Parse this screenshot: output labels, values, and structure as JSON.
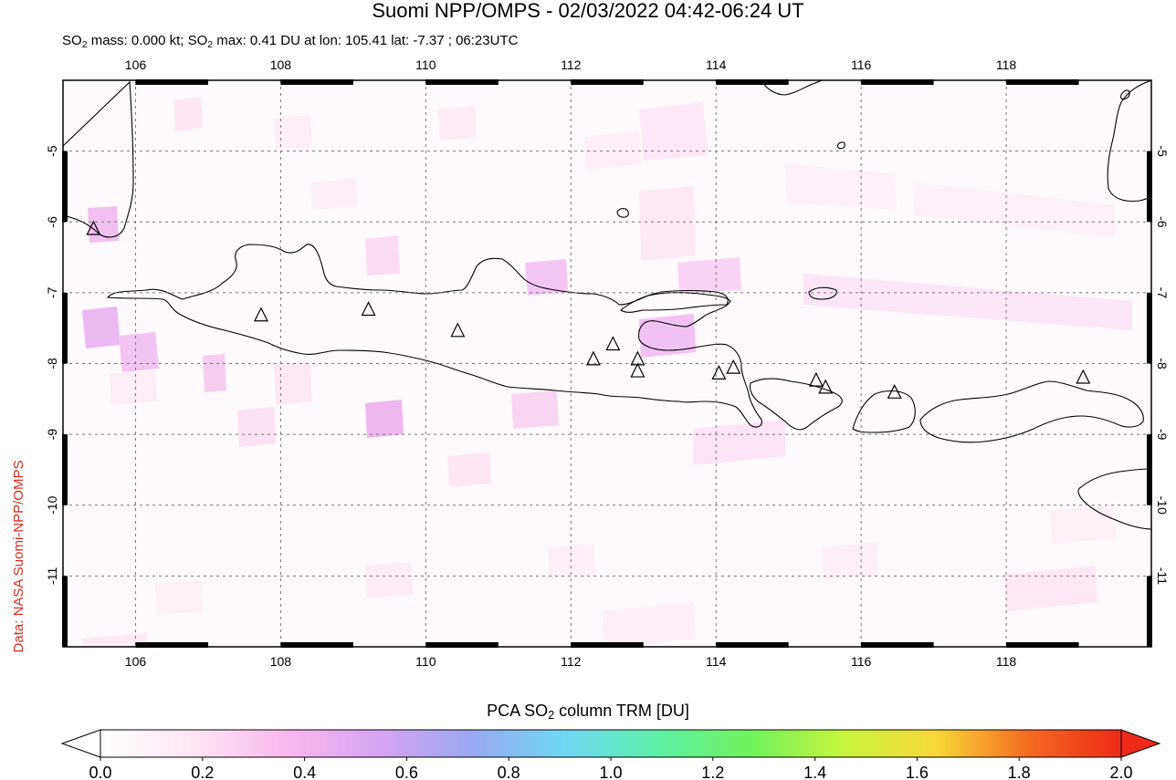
{
  "header": {
    "title": "Suomi NPP/OMPS - 02/03/2022 04:42-06:24 UT",
    "stats": {
      "prefix_a": "SO",
      "sub_a": "2",
      "mid_a": " mass: 0.000 kt; SO",
      "sub_b": "2",
      "rest": " max: 0.41 DU at lon: 105.41 lat: -7.37 ; 06:23UTC"
    }
  },
  "credit": "Data: NASA Suomi-NPP/OMPS",
  "map": {
    "lon_range": [
      105,
      120
    ],
    "lat_range": [
      -12,
      -4
    ],
    "lon_ticks": [
      "106",
      "108",
      "110",
      "112",
      "114",
      "116",
      "118"
    ],
    "lat_ticks": [
      "-5",
      "-6",
      "-7",
      "-8",
      "-9",
      "-10",
      "-11"
    ],
    "gridlines": "dashed",
    "volcano_marker": "triangle-icon"
  },
  "colorbar": {
    "label_prefix": "PCA SO",
    "label_sub": "2",
    "label_suffix": " column TRM [DU]",
    "ticks": [
      "0.0",
      "0.2",
      "0.4",
      "0.6",
      "0.8",
      "1.0",
      "1.2",
      "1.4",
      "1.6",
      "1.8",
      "2.0"
    ],
    "colors": [
      "#ffffff",
      "#fde6f4",
      "#f8b8ec",
      "#d7a4f4",
      "#9aa6f2",
      "#6fd8f4",
      "#5df0a8",
      "#6ff25c",
      "#c6f43c",
      "#f8d838",
      "#f46a20",
      "#ee2a18"
    ]
  }
}
